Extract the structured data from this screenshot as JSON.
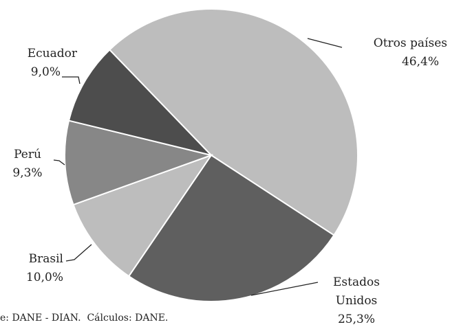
{
  "chart_data": {
    "type": "pie",
    "categories": [
      "Otros países",
      "Estados Unidos",
      "Brasil",
      "Perú",
      "Ecuador"
    ],
    "values": [
      46.4,
      25.3,
      10.0,
      9.3,
      9.0
    ],
    "value_labels": [
      "46,4%",
      "25,3%",
      "10,0%",
      "9,3%",
      "9,0%"
    ],
    "colors": [
      "#bdbdbd",
      "#5f5f5f",
      "#bdbdbd",
      "#878787",
      "#4d4d4d"
    ],
    "source": "e: DANE - DIAN.  Cálculos: DANE."
  }
}
